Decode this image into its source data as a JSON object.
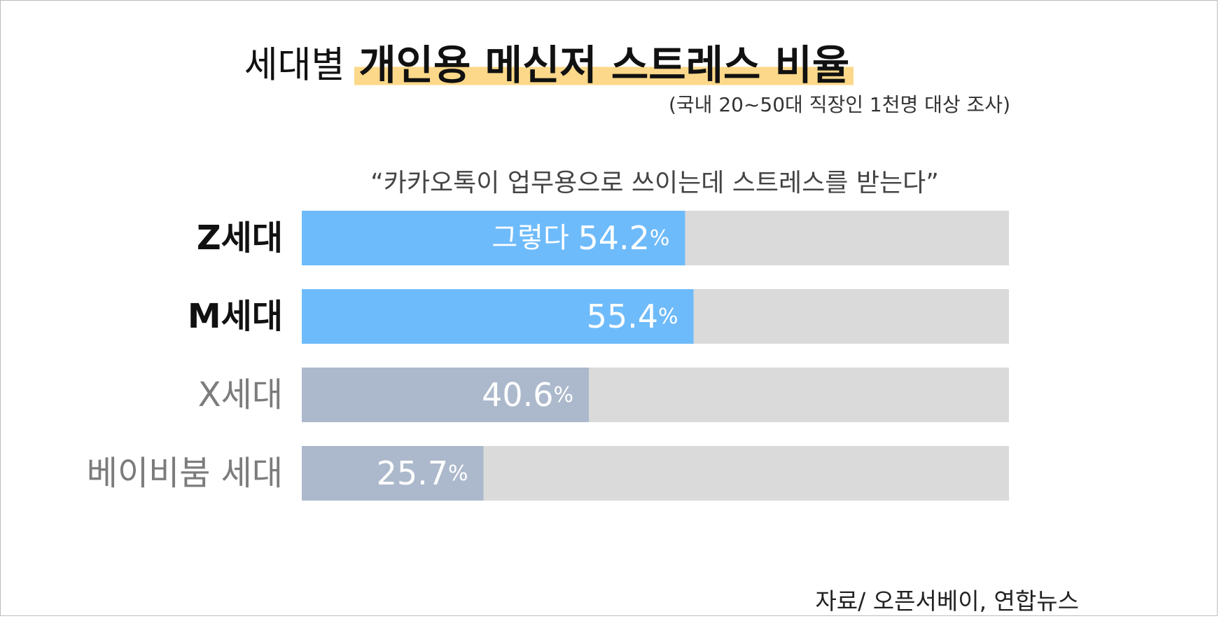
{
  "title": {
    "prefix": "세대별",
    "main": "개인용 메신저 스트레스 비율"
  },
  "subtitle": "(국내 20~50대 직장인 1천명 대상 조사)",
  "question": "“카카오톡이 업무용으로 쓰이는데 스트레스를 받는다”",
  "source": "자료/ 오픈서베이, 연합뉴스",
  "colors": {
    "highlight": "#fcd88a",
    "primary_bar": "#6ebbfb",
    "secondary_bar": "#acb9cc",
    "track": "#dadada",
    "primary_label": "#111111",
    "secondary_label": "#7c7c7c"
  },
  "chart_data": {
    "type": "bar",
    "orientation": "horizontal",
    "value_unit": "%",
    "value_prefix": "그렇다",
    "xlim": [
      0,
      100
    ],
    "grid": false,
    "categories": [
      "Z세대",
      "M세대",
      "X세대",
      "베이비붐 세대"
    ],
    "values": [
      54.2,
      55.4,
      40.6,
      25.7
    ],
    "value_labels": [
      "54.2",
      "55.4",
      "40.6",
      "25.7"
    ],
    "emphasis": [
      "primary",
      "primary",
      "secondary",
      "secondary"
    ]
  }
}
